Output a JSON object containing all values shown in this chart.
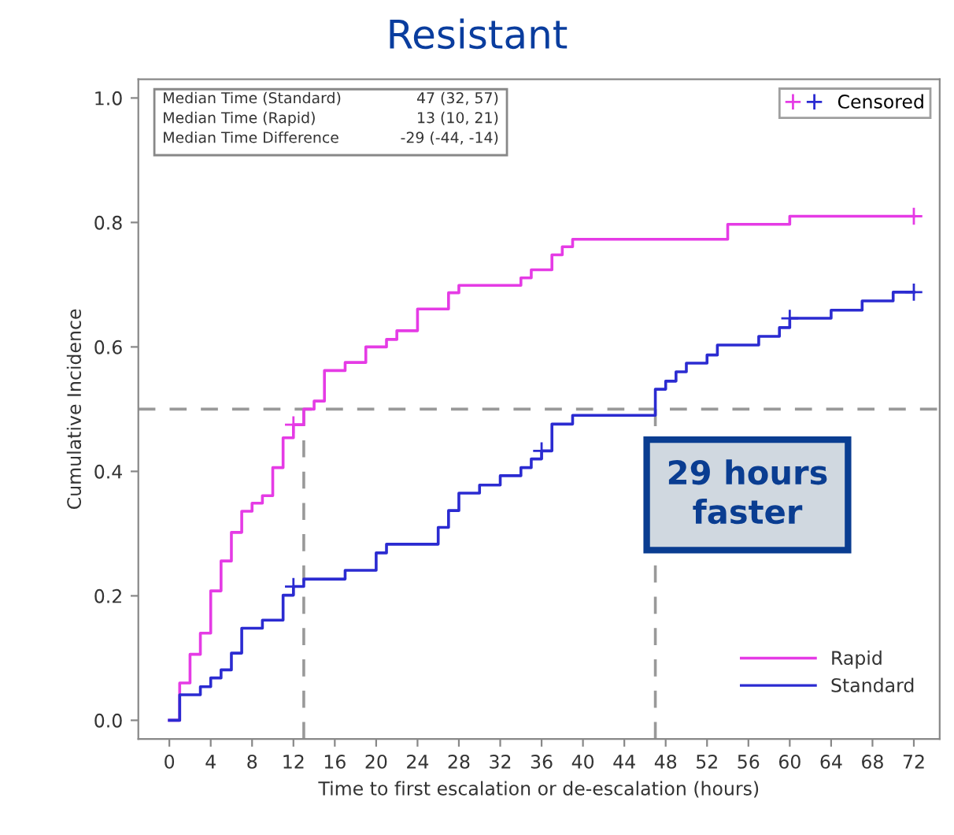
{
  "chart_data": {
    "type": "step",
    "title": "Resistant",
    "xlabel": "Time to first escalation or de-escalation (hours)",
    "ylabel": "Cumulative Incidence",
    "annotations": [
      "Median Time (Standard)",
      "47 (32, 57)",
      "Median Time (Rapid)",
      "13 (10, 21)",
      "Median Time Difference",
      "-29 (-44, -14)",
      "29 hours\nfaster"
    ],
    "series": [
      {
        "name": "Rapid",
        "color": "#e53be5",
        "x": [
          0,
          1,
          2,
          3,
          4,
          5,
          6,
          7,
          8,
          9,
          10,
          11,
          12,
          13,
          14,
          15,
          17,
          19,
          21,
          22,
          24,
          27,
          28,
          34,
          35,
          37,
          38,
          39,
          54,
          60,
          72
        ],
        "values": [
          0,
          0.06,
          0.106,
          0.14,
          0.208,
          0.256,
          0.302,
          0.336,
          0.349,
          0.361,
          0.406,
          0.454,
          0.475,
          0.5,
          0.513,
          0.562,
          0.575,
          0.6,
          0.612,
          0.626,
          0.661,
          0.687,
          0.699,
          0.711,
          0.724,
          0.748,
          0.761,
          0.773,
          0.797,
          0.81,
          0.81
        ]
      },
      {
        "name": "Standard",
        "color": "#2b2bd1",
        "x": [
          0,
          1,
          3,
          4,
          5,
          6,
          7,
          9,
          11,
          12,
          13,
          17,
          20,
          21,
          26,
          27,
          28,
          30,
          32,
          34,
          35,
          36,
          37,
          39,
          47,
          48,
          49,
          50,
          52,
          53,
          57,
          59,
          60,
          64,
          67,
          70,
          72
        ],
        "values": [
          0,
          0.041,
          0.054,
          0.068,
          0.081,
          0.108,
          0.148,
          0.161,
          0.201,
          0.215,
          0.227,
          0.241,
          0.269,
          0.283,
          0.31,
          0.337,
          0.365,
          0.378,
          0.393,
          0.406,
          0.42,
          0.433,
          0.476,
          0.49,
          0.532,
          0.545,
          0.56,
          0.574,
          0.587,
          0.603,
          0.617,
          0.631,
          0.646,
          0.659,
          0.674,
          0.688,
          0.688
        ]
      },
      {
        "name": "Censored",
        "type": "scatter",
        "marker": "cross",
        "colors": [
          "#e53be5",
          "#e53be5",
          "#2b2bd1",
          "#2b2bd1",
          "#2b2bd1",
          "#2b2bd1"
        ],
        "x": [
          12,
          72,
          12,
          36,
          60,
          72
        ],
        "values": [
          0.475,
          0.81,
          0.215,
          0.433,
          0.646,
          0.688
        ]
      }
    ],
    "ref_lines": [
      {
        "axis": "y",
        "value": 0.5,
        "color": "#999999",
        "line_style": "dashed"
      },
      {
        "axis": "x",
        "value": 13,
        "color": "#999999",
        "line_style": "dashed"
      },
      {
        "axis": "x",
        "value": 47,
        "color": "#999999",
        "line_style": "dashed"
      }
    ],
    "xlim": [
      -3,
      74.5
    ],
    "xticks": [
      0,
      4,
      8,
      12,
      16,
      20,
      24,
      28,
      32,
      36,
      40,
      44,
      48,
      52,
      56,
      60,
      64,
      68,
      72
    ],
    "ylim": [
      -0.03,
      1.03
    ],
    "yticks": [
      {
        "value": 0,
        "label": "0.0"
      },
      {
        "value": 0.2,
        "label": "0.2"
      },
      {
        "value": 0.4,
        "label": "0.4"
      },
      {
        "value": 0.6,
        "label": "0.6"
      },
      {
        "value": 0.8,
        "label": "0.8"
      },
      {
        "value": 1,
        "label": "1.0"
      }
    ],
    "grid": false,
    "legend": "right"
  }
}
